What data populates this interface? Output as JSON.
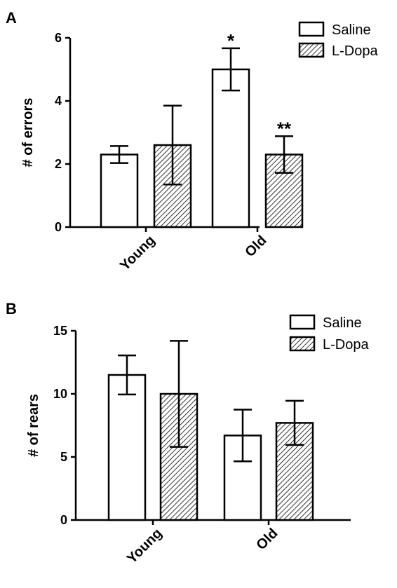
{
  "legend_colors": {
    "stroke": "#000000",
    "saline_fill": "#ffffff",
    "ldopa_hatch": "#000000"
  },
  "chart_data": [
    {
      "type": "bar",
      "panel_label": "A",
      "title": "",
      "xlabel": "",
      "ylabel": "# of errors",
      "ylim": [
        0,
        6
      ],
      "yticks": [
        "0",
        "2",
        "4",
        "6"
      ],
      "categories": [
        "Young",
        "Old"
      ],
      "series": [
        {
          "name": "Saline",
          "pattern": "solid-white",
          "values": [
            2.3,
            5.0
          ],
          "errors": [
            0.27,
            0.67
          ]
        },
        {
          "name": "L-Dopa",
          "pattern": "diagonal-hatch",
          "values": [
            2.6,
            2.3
          ],
          "errors": [
            1.25,
            0.58
          ]
        }
      ],
      "annotations": [
        {
          "text": "*",
          "category": 1,
          "series": 0
        },
        {
          "text": "**",
          "category": 1,
          "series": 1
        }
      ],
      "legend": "top-right",
      "grid": false
    },
    {
      "type": "bar",
      "panel_label": "B",
      "title": "",
      "xlabel": "",
      "ylabel": "# of rears",
      "ylim": [
        0,
        15
      ],
      "yticks": [
        "0",
        "5",
        "10",
        "15"
      ],
      "categories": [
        "Young",
        "Old"
      ],
      "series": [
        {
          "name": "Saline",
          "pattern": "solid-white",
          "values": [
            11.5,
            6.7
          ],
          "errors": [
            1.55,
            2.05
          ]
        },
        {
          "name": "L-Dopa",
          "pattern": "diagonal-hatch",
          "values": [
            10.0,
            7.7
          ],
          "errors": [
            4.2,
            1.75
          ]
        }
      ],
      "annotations": [],
      "legend": "top-right",
      "grid": false
    }
  ]
}
